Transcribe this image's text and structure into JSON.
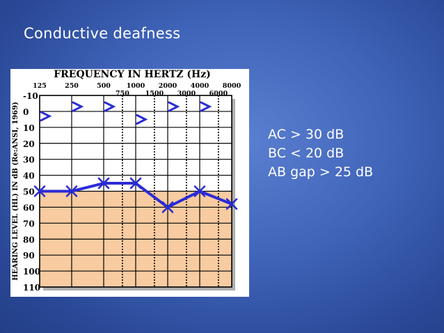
{
  "slide": {
    "title": "Conductive deafness",
    "notes": [
      "AC > 30 dB",
      "BC < 20 dB",
      "AB gap > 25 dB"
    ]
  },
  "chart_data": {
    "type": "line",
    "title": "FREQUENCY IN HERTZ (Hz)",
    "ylabel": "HEARING LEVEL (HL) IN dB (Re:ANSI, 1969)",
    "x_ticks_top": [
      "125",
      "250",
      "500",
      "1000",
      "2000",
      "4000",
      "8000"
    ],
    "x_ticks_mid": [
      "750",
      "1500",
      "3000",
      "6000"
    ],
    "y_ticks": [
      -10,
      0,
      10,
      20,
      30,
      40,
      50,
      60,
      70,
      80,
      90,
      100,
      110
    ],
    "ylim": [
      -10,
      110
    ],
    "y_inverted": true,
    "shaded_region_from_db": 50,
    "series": [
      {
        "marker": "x",
        "color": "#2b2bd6",
        "x": [
          125,
          250,
          500,
          1000,
          2000,
          4000,
          8000
        ],
        "y": [
          50,
          50,
          45,
          45,
          60,
          50,
          58
        ]
      },
      {
        "marker": ">",
        "color": "#2b2bd6",
        "x": [
          125,
          250,
          500,
          1000,
          2000,
          4000
        ],
        "y": [
          3,
          -3,
          -3,
          5,
          -3,
          -3
        ]
      }
    ],
    "colors": {
      "shade": "#f8cba0",
      "grid": "#000000",
      "line": "#2b2bd6",
      "panel": "#ffffff",
      "shadow": "#b0b0b0"
    }
  }
}
